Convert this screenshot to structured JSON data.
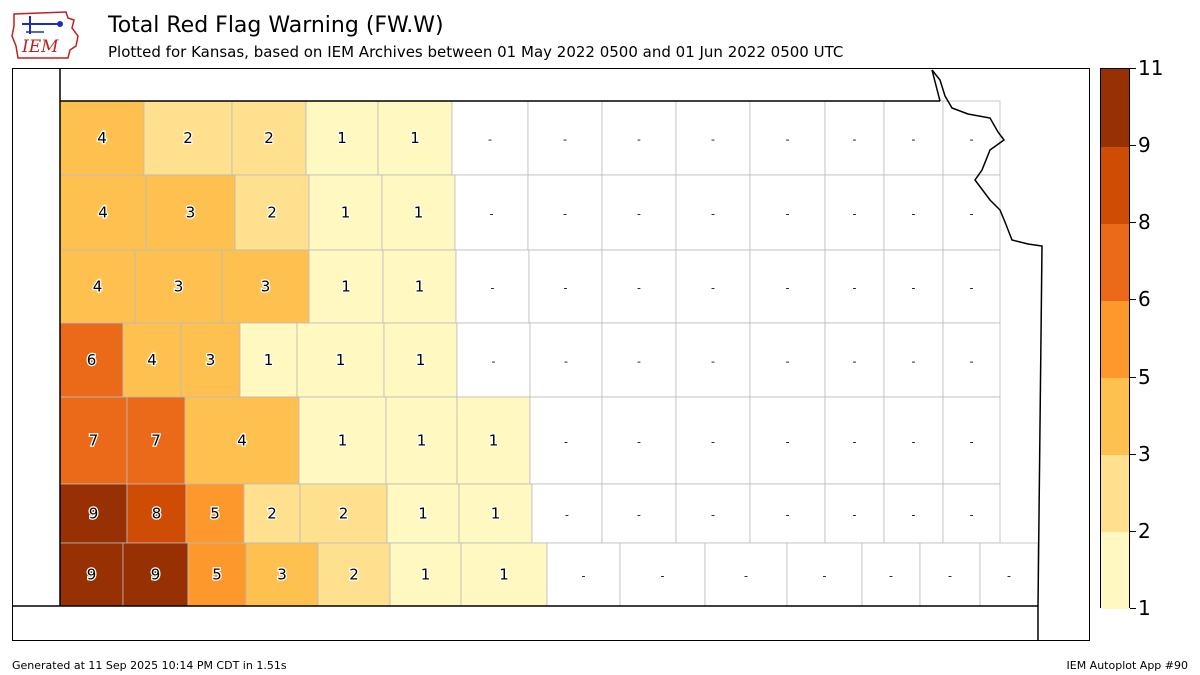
{
  "logo_text": "IEM",
  "title": "Total Red Flag Warning (FW.W)",
  "subtitle": "Plotted for Kansas, based on IEM Archives  between 01 May 2022 0500 and 01 Jun 2022 0500 UTC",
  "footer_left": "Generated at 11 Sep 2025 10:14 PM CDT in 1.51s",
  "footer_right": "IEM Autoplot App #90",
  "colors": {
    "no_data": "#ffffff",
    "county_border": "#bbbbbb",
    "outline": "#000000"
  },
  "colorbar": {
    "ticks": [
      "1",
      "2",
      "3",
      "5",
      "6",
      "8",
      "9",
      "11"
    ],
    "bins": [
      {
        "from": 1,
        "to": 2,
        "color": "#fff8c0"
      },
      {
        "from": 2,
        "to": 3,
        "color": "#fee08f"
      },
      {
        "from": 3,
        "to": 5,
        "color": "#fec14f"
      },
      {
        "from": 5,
        "to": 6,
        "color": "#fd982d"
      },
      {
        "from": 6,
        "to": 8,
        "color": "#ea6a1a"
      },
      {
        "from": 8,
        "to": 9,
        "color": "#cf4c05"
      },
      {
        "from": 9,
        "to": 11,
        "color": "#973003"
      }
    ]
  },
  "county_values": [
    [
      "4",
      "2",
      "2",
      "1",
      "1",
      "-",
      "-",
      "-",
      "-",
      "-",
      "-",
      "-",
      "-"
    ],
    [
      "4",
      "3",
      "2",
      "1",
      "1",
      "-",
      "-",
      "-",
      "-",
      "-",
      "-",
      "-",
      "-"
    ],
    [
      "4",
      "3",
      "3",
      "1",
      "1",
      "-",
      "-",
      "-",
      "-",
      "-",
      "-",
      "-",
      "-"
    ],
    [
      "6",
      "4",
      "3",
      "1",
      "1",
      "1",
      "-",
      "-",
      "-",
      "-",
      "-",
      "-",
      "-",
      "-"
    ],
    [
      "7",
      "7",
      "4",
      "1",
      "1",
      "1",
      "-",
      "-",
      "-",
      "-",
      "-",
      "-",
      "-"
    ],
    [
      "9",
      "8",
      "5",
      "2",
      "2",
      "1",
      "1",
      "-",
      "-",
      "-",
      "-",
      "-",
      "-",
      "-"
    ],
    [
      "9",
      "9",
      "5",
      "3",
      "2",
      "1",
      "1",
      "-",
      "-",
      "-",
      "-",
      "-",
      "-",
      "-"
    ]
  ]
}
